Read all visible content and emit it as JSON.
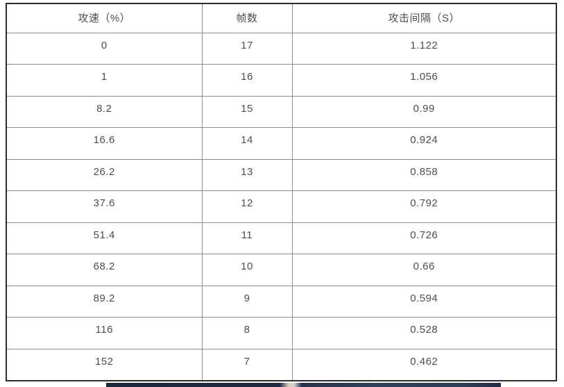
{
  "table": {
    "columns": [
      "攻速（%）",
      "帧数",
      "攻击间隔（S）"
    ],
    "rows": [
      [
        "0",
        "17",
        "1.122"
      ],
      [
        "1",
        "16",
        "1.056"
      ],
      [
        "8.2",
        "15",
        "0.99"
      ],
      [
        "16.6",
        "14",
        "0.924"
      ],
      [
        "26.2",
        "13",
        "0.858"
      ],
      [
        "37.6",
        "12",
        "0.792"
      ],
      [
        "51.4",
        "11",
        "0.726"
      ],
      [
        "68.2",
        "10",
        "0.66"
      ],
      [
        "89.2",
        "9",
        "0.594"
      ],
      [
        "116",
        "8",
        "0.528"
      ],
      [
        "152",
        "7",
        "0.462"
      ]
    ]
  },
  "colors": {
    "text": "#4d4d4d",
    "outer_border": "#2b2b2b",
    "inner_grid": "#8c8c8c",
    "background": "#ffffff",
    "next_image_sliver_navy": "#1f2c48"
  },
  "chart_data": {
    "type": "table",
    "title": "",
    "categories": [
      "攻速（%）",
      "帧数",
      "攻击间隔（S）"
    ],
    "series": [
      {
        "name": "攻速（%）",
        "values": [
          0,
          1,
          8.2,
          16.6,
          26.2,
          37.6,
          51.4,
          68.2,
          89.2,
          116,
          152
        ]
      },
      {
        "name": "帧数",
        "values": [
          17,
          16,
          15,
          14,
          13,
          12,
          11,
          10,
          9,
          8,
          7
        ]
      },
      {
        "name": "攻击间隔（S）",
        "values": [
          1.122,
          1.056,
          0.99,
          0.924,
          0.858,
          0.792,
          0.726,
          0.66,
          0.594,
          0.528,
          0.462
        ]
      }
    ]
  }
}
